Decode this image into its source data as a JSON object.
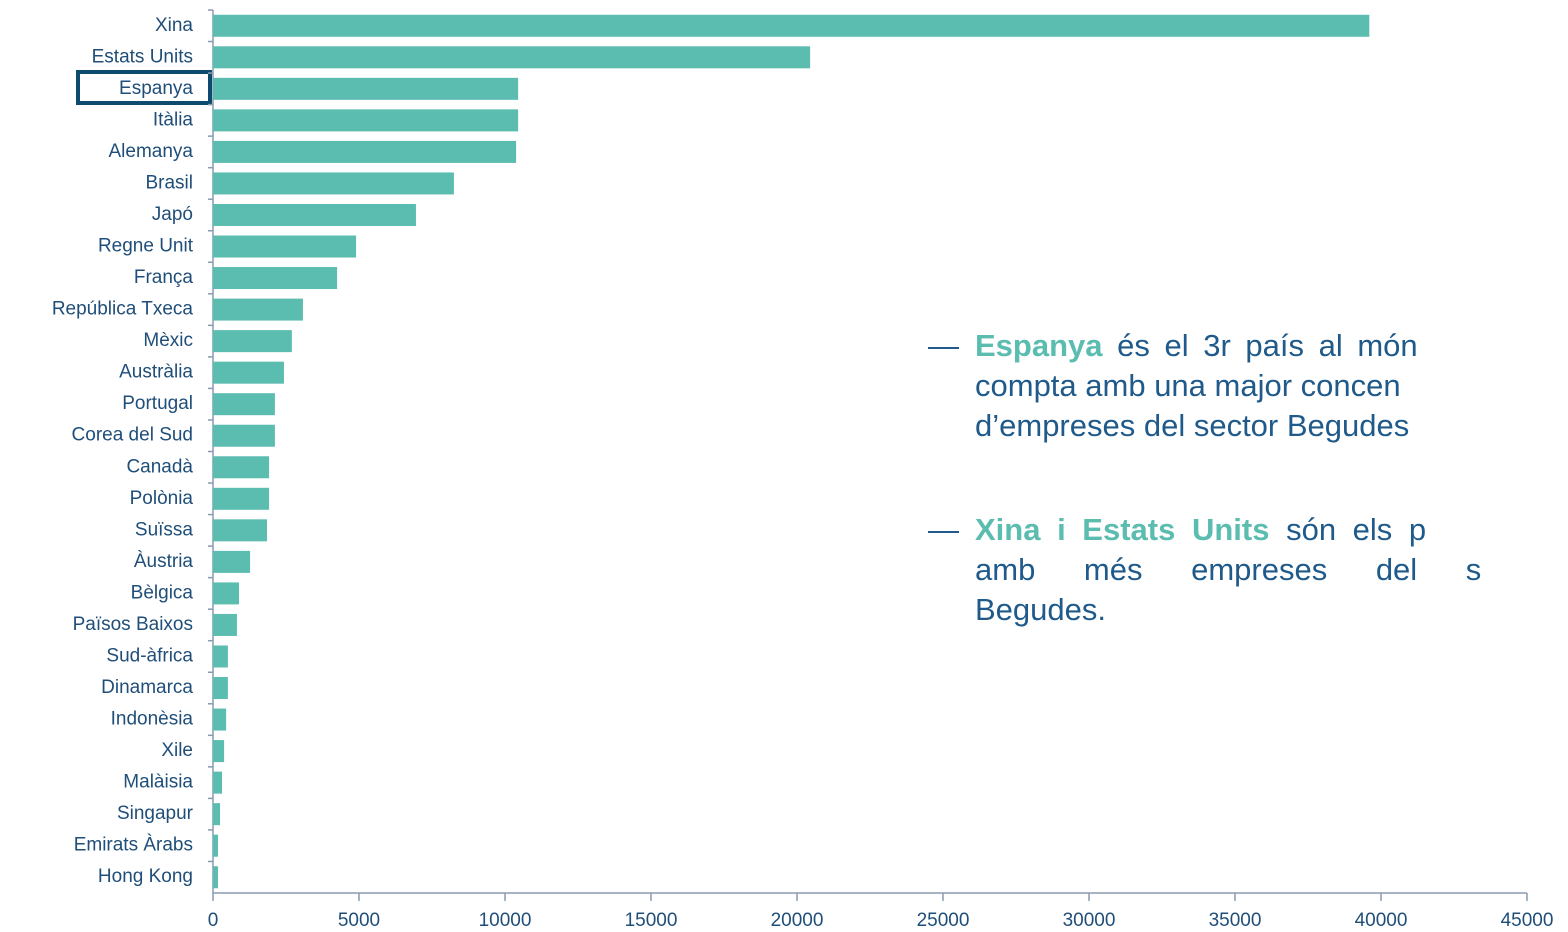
{
  "chart_data": {
    "type": "barh",
    "categories": [
      "Xina",
      "Estats Units",
      "Espanya",
      "Itàlia",
      "Alemanya",
      "Brasil",
      "Japó",
      "Regne Unit",
      "França",
      "República Txeca",
      "Mèxic",
      "Austràlia",
      "Portugal",
      "Corea del Sud",
      "Canadà",
      "Polònia",
      "Suïssa",
      "Àustria",
      "Bèlgica",
      "Països Baixos",
      "Sud-àfrica",
      "Dinamarca",
      "Indonèsia",
      "Xile",
      "Malàisia",
      "Singapur",
      "Emirats Àrabs",
      "Hong Kong"
    ],
    "values": [
      39600,
      20450,
      10450,
      10450,
      10380,
      8250,
      6950,
      4900,
      4250,
      3080,
      2700,
      2430,
      2120,
      2120,
      1920,
      1920,
      1850,
      1270,
      890,
      820,
      510,
      510,
      450,
      380,
      310,
      240,
      170,
      170
    ],
    "color": "#5bbcb0",
    "xlim": [
      0,
      45000
    ],
    "xticks": [
      0,
      5000,
      10000,
      15000,
      20000,
      25000,
      30000,
      35000,
      40000,
      45000
    ],
    "grid": false,
    "bullet": "—",
    "annotations": [
      {
        "bold": "Espanya",
        "lines": [
          " és el 3r país al món",
          "compta amb una major concen",
          "d’empreses del sector Begudes"
        ]
      },
      {
        "bold": "Xina i Estats Units",
        "lines": [
          " són els p",
          "amb més empreses del s",
          "Begudes."
        ]
      }
    ]
  }
}
